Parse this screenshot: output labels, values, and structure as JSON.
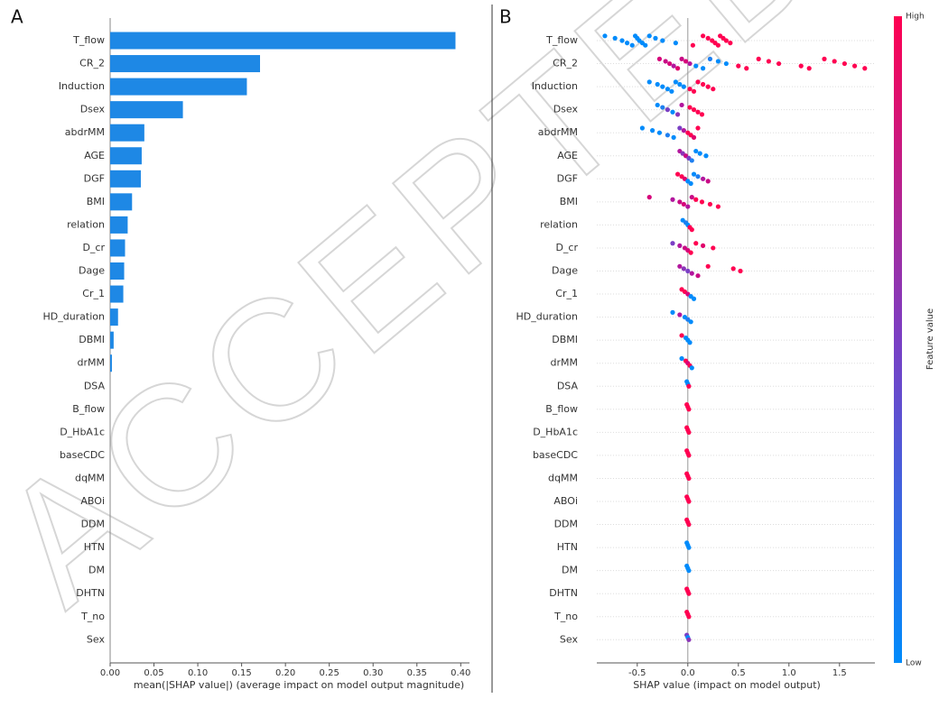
{
  "watermark": "ACCEPTED",
  "chart_data": [
    {
      "type": "bar",
      "title": "A",
      "xlabel": "mean(|SHAP value|) (average impact on model output magnitude)",
      "color": "#1e88e5",
      "categories": [
        "T_flow",
        "CR_2",
        "Induction",
        "Dsex",
        "abdrMM",
        "AGE",
        "DGF",
        "BMI",
        "relation",
        "D_cr",
        "Dage",
        "Cr_1",
        "HD_duration",
        "DBMI",
        "drMM",
        "DSA",
        "B_flow",
        "D_HbA1c",
        "baseCDC",
        "dqMM",
        "ABOi",
        "DDM",
        "HTN",
        "DM",
        "DHTN",
        "T_no",
        "Sex"
      ],
      "values": [
        0.394,
        0.171,
        0.156,
        0.083,
        0.039,
        0.036,
        0.035,
        0.025,
        0.02,
        0.017,
        0.016,
        0.015,
        0.009,
        0.004,
        0.002,
        0,
        0,
        0,
        0,
        0,
        0,
        0,
        0,
        0,
        0,
        0,
        0
      ],
      "xlim": [
        0,
        0.41
      ],
      "xticks": [
        {
          "value": 0,
          "label": "0.00"
        },
        {
          "value": 0.05,
          "label": "0.05"
        },
        {
          "value": 0.1,
          "label": "0.10"
        },
        {
          "value": 0.15,
          "label": "0.15"
        },
        {
          "value": 0.2,
          "label": "0.20"
        },
        {
          "value": 0.25,
          "label": "0.25"
        },
        {
          "value": 0.3,
          "label": "0.30"
        },
        {
          "value": 0.35,
          "label": "0.35"
        },
        {
          "value": 0.4,
          "label": "0.40"
        }
      ]
    },
    {
      "type": "beeswarm",
      "title": "B",
      "xlabel": "SHAP value (impact on model output)",
      "grid": true,
      "categories": [
        "T_flow",
        "CR_2",
        "Induction",
        "Dsex",
        "abdrMM",
        "AGE",
        "DGF",
        "BMI",
        "relation",
        "D_cr",
        "Dage",
        "Cr_1",
        "HD_duration",
        "DBMI",
        "drMM",
        "DSA",
        "B_flow",
        "D_HbA1c",
        "baseCDC",
        "dqMM",
        "ABOi",
        "DDM",
        "HTN",
        "DM",
        "DHTN",
        "T_no",
        "Sex"
      ],
      "rows": [
        {
          "values": [
            -0.82,
            -0.72,
            -0.65,
            -0.6,
            -0.55,
            -0.52,
            -0.5,
            -0.48,
            -0.45,
            -0.42,
            -0.38,
            -0.32,
            -0.25,
            -0.12,
            0.05,
            0.15,
            0.2,
            0.24,
            0.27,
            0.3,
            0.32,
            0.35,
            0.38,
            0.42
          ],
          "colors": [
            "#008bfb",
            "#008bfb",
            "#008bfb",
            "#008bfb",
            "#008bfb",
            "#008bfb",
            "#008bfb",
            "#008bfb",
            "#008bfb",
            "#008bfb",
            "#008bfb",
            "#008bfb",
            "#008bfb",
            "#008bfb",
            "#ff0051",
            "#ff0051",
            "#ff0051",
            "#ff0051",
            "#ff0051",
            "#ff0051",
            "#ff0051",
            "#ff0051",
            "#ff0051",
            "#ff0051"
          ]
        },
        {
          "values": [
            -0.28,
            -0.22,
            -0.18,
            -0.14,
            -0.1,
            -0.06,
            -0.02,
            0.02,
            0.08,
            0.15,
            0.22,
            0.3,
            0.38,
            0.5,
            0.58,
            0.7,
            0.8,
            0.9,
            1.12,
            1.2,
            1.35,
            1.45,
            1.55,
            1.65,
            1.75
          ],
          "colors": [
            "#d6047a",
            "#c80a85",
            "#d6047a",
            "#b2169d",
            "#e0026b",
            "#c80a85",
            "#d6047a",
            "#b2169d",
            "#008bfb",
            "#008bfb",
            "#1e7ff0",
            "#008bfb",
            "#008bfb",
            "#ff0051",
            "#ff0051",
            "#ff0051",
            "#ff0051",
            "#ff0051",
            "#ff0051",
            "#ff0051",
            "#ff0051",
            "#ff0051",
            "#ff0051",
            "#ff0051",
            "#ff0051"
          ]
        },
        {
          "values": [
            -0.38,
            -0.3,
            -0.25,
            -0.2,
            -0.16,
            -0.12,
            -0.08,
            -0.04,
            0.02,
            0.06,
            0.1,
            0.15,
            0.2,
            0.25
          ],
          "colors": [
            "#008bfb",
            "#008bfb",
            "#008bfb",
            "#008bfb",
            "#008bfb",
            "#008bfb",
            "#008bfb",
            "#008bfb",
            "#ff0051",
            "#ff0051",
            "#ff0051",
            "#ff0051",
            "#ff0051",
            "#ff0051"
          ]
        },
        {
          "values": [
            -0.3,
            -0.25,
            -0.2,
            -0.15,
            -0.1,
            -0.06,
            0.02,
            0.06,
            0.1,
            0.14
          ],
          "colors": [
            "#008bfb",
            "#1e7ff0",
            "#7a3fc4",
            "#008bfb",
            "#8a35b8",
            "#b2169d",
            "#ff0051",
            "#ff0051",
            "#ff0051",
            "#ff0051"
          ]
        },
        {
          "values": [
            -0.45,
            -0.35,
            -0.28,
            -0.2,
            -0.14,
            -0.08,
            -0.04,
            0.0,
            0.03,
            0.06,
            0.1
          ],
          "colors": [
            "#008bfb",
            "#008bfb",
            "#008bfb",
            "#1e7ff0",
            "#008bfb",
            "#7a3fc4",
            "#b2169d",
            "#ff0051",
            "#ff0051",
            "#e0026b",
            "#ff0051"
          ]
        },
        {
          "values": [
            -0.08,
            -0.05,
            -0.02,
            0.01,
            0.04,
            0.08,
            0.12,
            0.18
          ],
          "colors": [
            "#b2169d",
            "#8a35b8",
            "#c80a85",
            "#7a3fc4",
            "#1e7ff0",
            "#008bfb",
            "#008bfb",
            "#008bfb"
          ]
        },
        {
          "values": [
            -0.1,
            -0.06,
            -0.03,
            0.0,
            0.03,
            0.06,
            0.1,
            0.15,
            0.2
          ],
          "colors": [
            "#ff0051",
            "#ff0051",
            "#e0026b",
            "#008bfb",
            "#008bfb",
            "#008bfb",
            "#1e7ff0",
            "#b2169d",
            "#c80a85"
          ]
        },
        {
          "values": [
            -0.38,
            -0.15,
            -0.08,
            -0.04,
            0.0,
            0.04,
            0.08,
            0.14,
            0.22,
            0.3
          ],
          "colors": [
            "#d6047a",
            "#b2169d",
            "#c80a85",
            "#d6047a",
            "#b2169d",
            "#c80a85",
            "#ff0051",
            "#ff0051",
            "#ff0051",
            "#ff0051"
          ]
        },
        {
          "values": [
            -0.05,
            -0.02,
            0.0,
            0.02,
            0.04
          ],
          "colors": [
            "#008bfb",
            "#1e7ff0",
            "#008bfb",
            "#ff0051",
            "#ff0051"
          ]
        },
        {
          "values": [
            -0.15,
            -0.08,
            -0.03,
            0.0,
            0.03,
            0.08,
            0.15,
            0.25
          ],
          "colors": [
            "#7a3fc4",
            "#b2169d",
            "#c80a85",
            "#d6047a",
            "#ff0051",
            "#ff0051",
            "#e0026b",
            "#ff0051"
          ]
        },
        {
          "values": [
            -0.08,
            -0.04,
            0.0,
            0.04,
            0.1,
            0.2,
            0.45,
            0.52
          ],
          "colors": [
            "#b2169d",
            "#8a35b8",
            "#7a3fc4",
            "#b2169d",
            "#c80a85",
            "#ff0051",
            "#ff0051",
            "#ff0051"
          ]
        },
        {
          "values": [
            -0.06,
            -0.03,
            0.0,
            0.03,
            0.06
          ],
          "colors": [
            "#ff0051",
            "#ff0051",
            "#d6047a",
            "#008bfb",
            "#008bfb"
          ]
        },
        {
          "values": [
            -0.15,
            -0.08,
            -0.03,
            0.0,
            0.03
          ],
          "colors": [
            "#008bfb",
            "#b2169d",
            "#008bfb",
            "#1e7ff0",
            "#008bfb"
          ]
        },
        {
          "values": [
            -0.06,
            -0.02,
            0.0,
            0.02
          ],
          "colors": [
            "#ff0051",
            "#008bfb",
            "#008bfb",
            "#008bfb"
          ]
        },
        {
          "values": [
            -0.06,
            -0.02,
            0.0,
            0.02,
            0.04
          ],
          "colors": [
            "#008bfb",
            "#ff0051",
            "#d6047a",
            "#ff0051",
            "#008bfb"
          ]
        },
        {
          "values": [
            -0.01,
            0.0,
            0.01
          ],
          "colors": [
            "#008bfb",
            "#008bfb",
            "#ff0051"
          ]
        },
        {
          "values": [
            -0.01,
            0.0,
            0.01
          ],
          "colors": [
            "#ff0051",
            "#ff0051",
            "#ff0051"
          ]
        },
        {
          "values": [
            -0.01,
            0.0,
            0.01
          ],
          "colors": [
            "#ff0051",
            "#ff0051",
            "#ff0051"
          ]
        },
        {
          "values": [
            -0.01,
            0.0,
            0.01
          ],
          "colors": [
            "#ff0051",
            "#ff0051",
            "#ff0051"
          ]
        },
        {
          "values": [
            -0.01,
            0.0,
            0.01
          ],
          "colors": [
            "#ff0051",
            "#ff0051",
            "#ff0051"
          ]
        },
        {
          "values": [
            -0.01,
            0.0,
            0.01
          ],
          "colors": [
            "#ff0051",
            "#ff0051",
            "#ff0051"
          ]
        },
        {
          "values": [
            -0.01,
            0.0,
            0.01
          ],
          "colors": [
            "#ff0051",
            "#ff0051",
            "#ff0051"
          ]
        },
        {
          "values": [
            -0.01,
            0.0,
            0.01
          ],
          "colors": [
            "#008bfb",
            "#008bfb",
            "#008bfb"
          ]
        },
        {
          "values": [
            -0.01,
            0.0,
            0.01
          ],
          "colors": [
            "#008bfb",
            "#008bfb",
            "#008bfb"
          ]
        },
        {
          "values": [
            -0.01,
            0.0,
            0.01
          ],
          "colors": [
            "#ff0051",
            "#ff0051",
            "#ff0051"
          ]
        },
        {
          "values": [
            -0.01,
            0.0,
            0.01
          ],
          "colors": [
            "#ff0051",
            "#ff0051",
            "#ff0051"
          ]
        },
        {
          "values": [
            -0.01,
            0.0,
            0.01
          ],
          "colors": [
            "#7a3fc4",
            "#008bfb",
            "#8a35b8"
          ]
        }
      ],
      "xlim": [
        -0.9,
        1.85
      ],
      "xticks": [
        {
          "value": -0.5,
          "label": "-0.5"
        },
        {
          "value": 0,
          "label": "0.0"
        },
        {
          "value": 0.5,
          "label": "0.5"
        },
        {
          "value": 1,
          "label": "1.0"
        },
        {
          "value": 1.5,
          "label": "1.5"
        }
      ],
      "colorbar": {
        "high": "High",
        "low": "Low",
        "label": "Feature value",
        "colors": [
          "#008bfb",
          "#7a3fc4",
          "#ff0051"
        ]
      }
    }
  ]
}
